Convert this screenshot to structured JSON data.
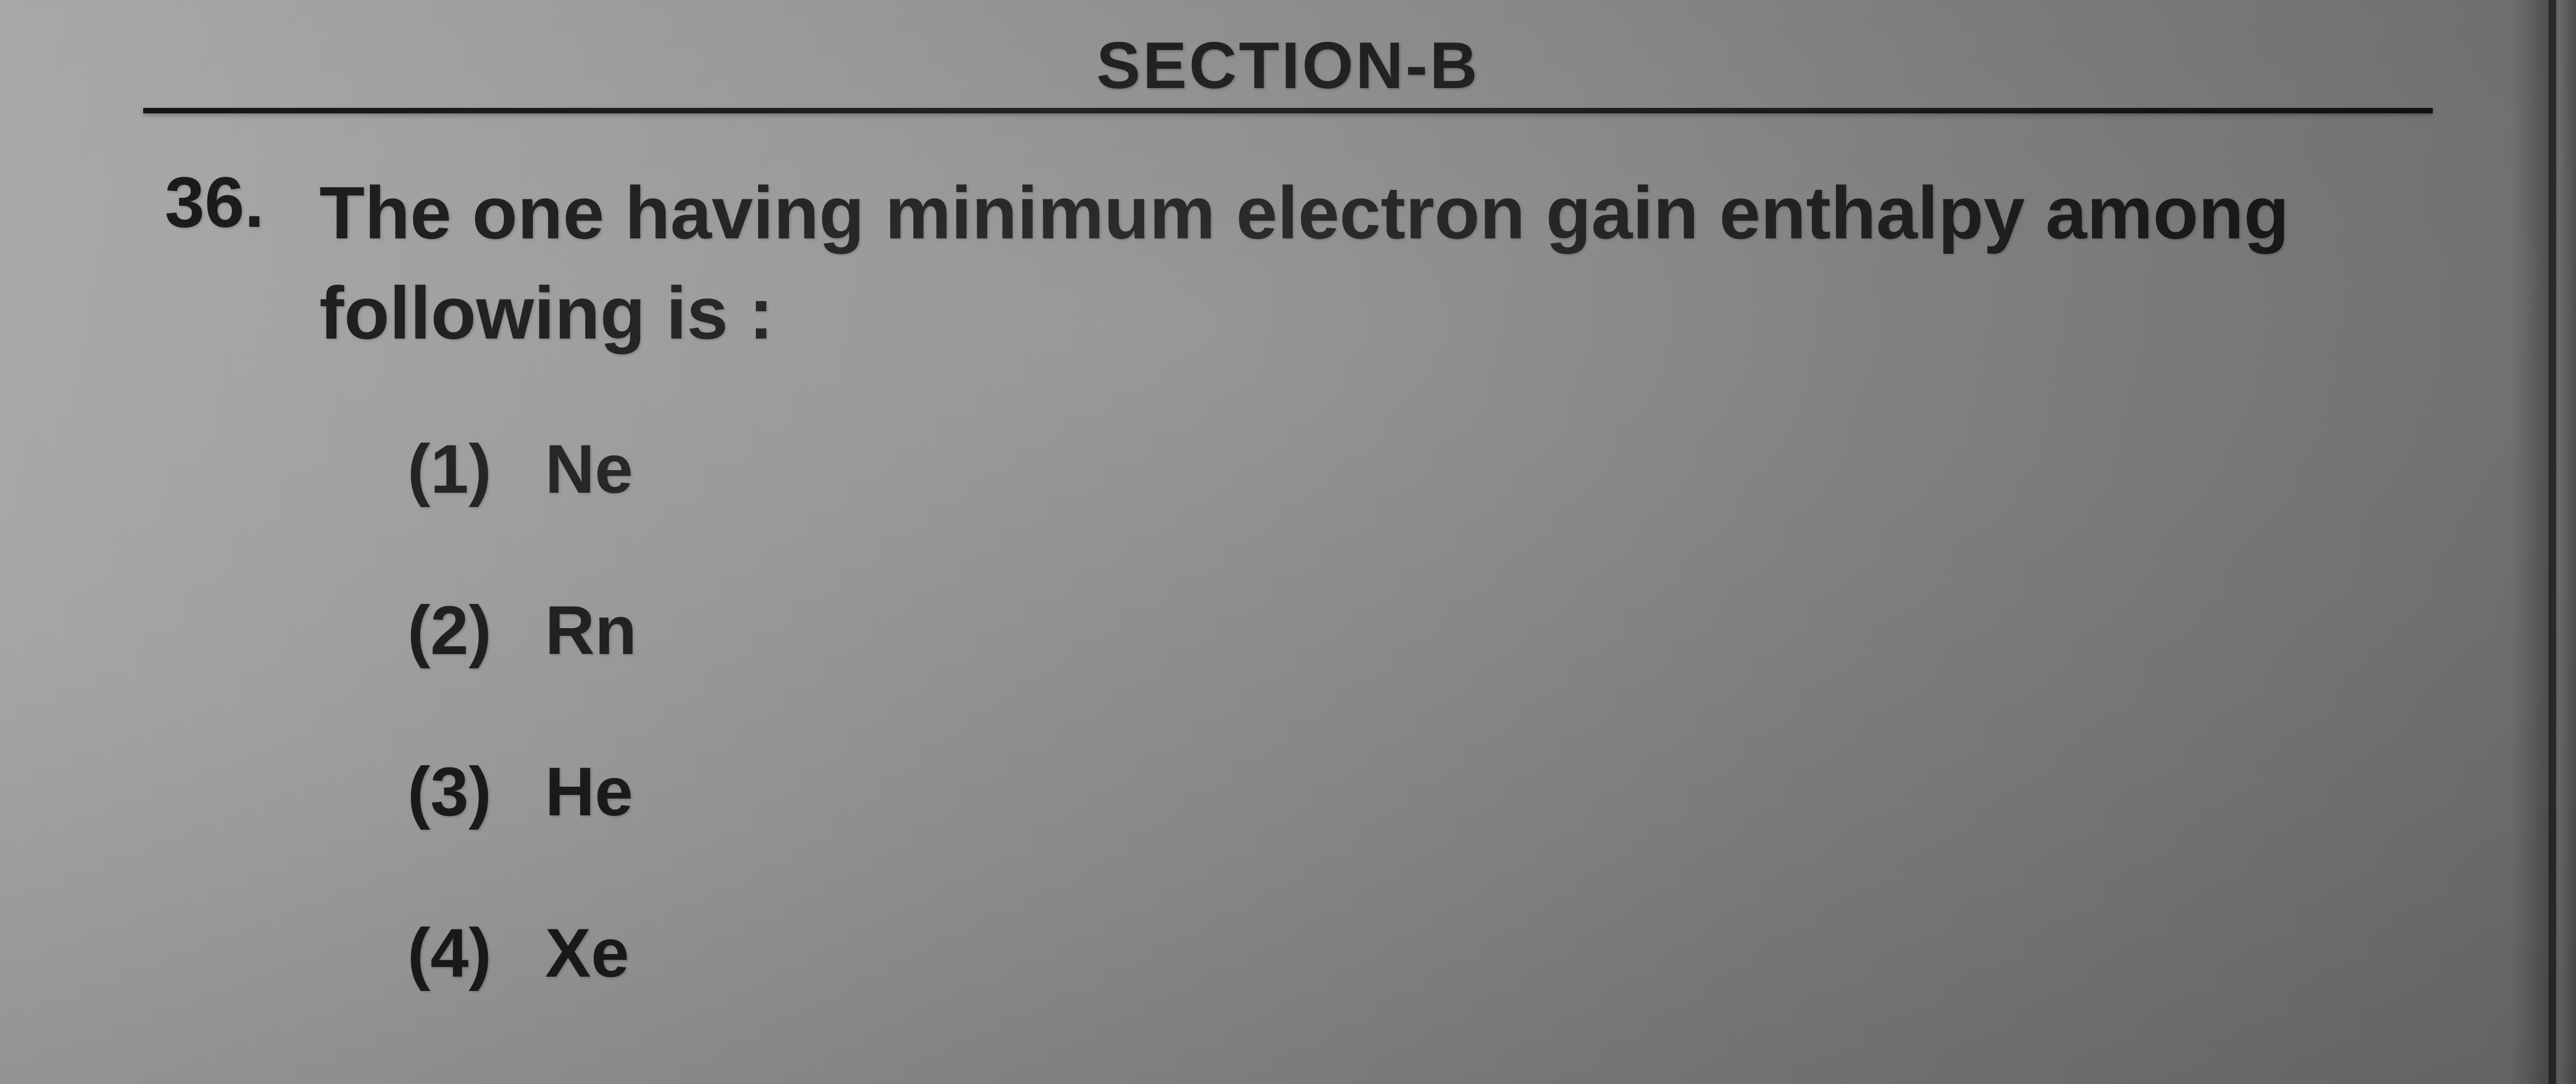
{
  "section": {
    "header": "SECTION-B"
  },
  "question": {
    "number": "36.",
    "text": "The one having minimum electron gain enthalpy among following is :",
    "options": [
      {
        "label": "(1)",
        "value": "Ne"
      },
      {
        "label": "(2)",
        "value": "Rn"
      },
      {
        "label": "(3)",
        "value": "He"
      },
      {
        "label": "(4)",
        "value": "Xe"
      }
    ]
  }
}
